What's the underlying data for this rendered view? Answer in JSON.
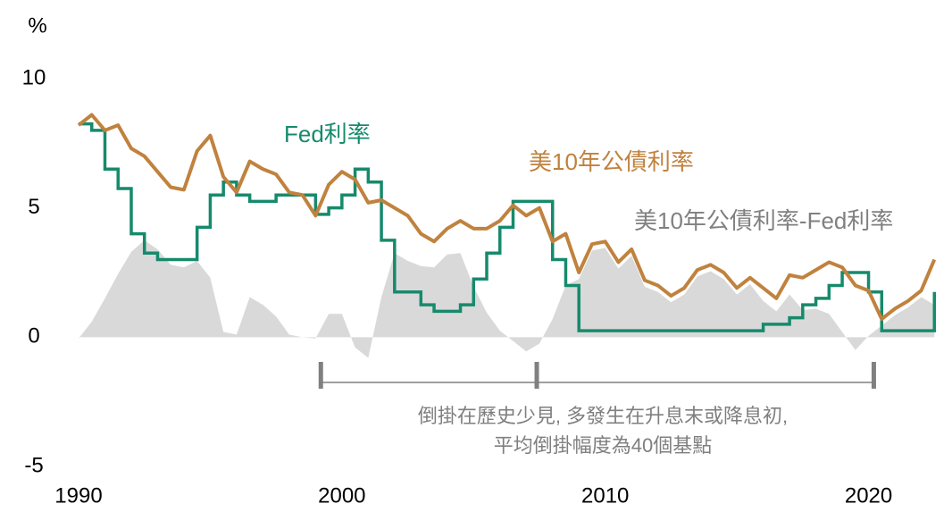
{
  "chart_data": {
    "type": "line",
    "y_axis_label": "%",
    "xlim": [
      1990,
      2023
    ],
    "xticks": [
      1990,
      2000,
      2010,
      2020
    ],
    "ylim": [
      -5,
      10
    ],
    "yticks": [
      10,
      5,
      0,
      -5
    ],
    "grid": false,
    "x": [
      1990.0,
      1990.5,
      1991.0,
      1991.5,
      1992.0,
      1992.5,
      1993.0,
      1993.5,
      1994.0,
      1994.5,
      1995.0,
      1995.5,
      1996.0,
      1996.5,
      1997.0,
      1997.5,
      1998.0,
      1998.5,
      1999.0,
      1999.5,
      2000.0,
      2000.5,
      2001.0,
      2001.5,
      2002.0,
      2002.5,
      2003.0,
      2003.5,
      2004.0,
      2004.5,
      2005.0,
      2005.5,
      2006.0,
      2006.5,
      2007.0,
      2007.5,
      2008.0,
      2008.5,
      2009.0,
      2009.5,
      2010.0,
      2010.5,
      2011.0,
      2011.5,
      2012.0,
      2012.5,
      2013.0,
      2013.5,
      2014.0,
      2014.5,
      2015.0,
      2015.5,
      2016.0,
      2016.5,
      2017.0,
      2017.5,
      2018.0,
      2018.5,
      2019.0,
      2019.5,
      2020.0,
      2020.5,
      2021.0,
      2021.5,
      2022.0,
      2022.5
    ],
    "series": [
      {
        "name": "美10年公債利率-Fed利率",
        "color": "#d9d9d9",
        "style": "area",
        "values": [
          -0.05,
          0.6,
          1.5,
          2.45,
          3.3,
          3.75,
          3.4,
          2.8,
          2.7,
          2.95,
          2.3,
          0.2,
          0.1,
          1.55,
          1.25,
          0.8,
          0.1,
          0.0,
          -0.05,
          0.9,
          0.9,
          -0.4,
          -0.8,
          1.55,
          3.25,
          2.95,
          2.75,
          2.7,
          3.2,
          3.25,
          1.95,
          0.95,
          0.25,
          -0.15,
          -0.55,
          -0.25,
          0.7,
          2.0,
          2.25,
          3.35,
          3.45,
          2.65,
          3.15,
          1.95,
          1.75,
          1.35,
          1.65,
          2.35,
          2.55,
          2.25,
          1.65,
          2.05,
          1.4,
          1.0,
          1.65,
          1.05,
          1.1,
          0.9,
          0.2,
          -0.5,
          0.05,
          0.45,
          0.85,
          1.15,
          1.55,
          1.25
        ]
      },
      {
        "name": "Fed利率",
        "color": "#168a6c",
        "style": "step",
        "values": [
          8.25,
          8.0,
          6.5,
          5.75,
          4.0,
          3.25,
          3.0,
          3.0,
          3.0,
          4.25,
          5.5,
          6.0,
          5.5,
          5.25,
          5.25,
          5.5,
          5.5,
          5.5,
          4.75,
          5.0,
          5.5,
          6.5,
          6.0,
          3.75,
          1.75,
          1.75,
          1.25,
          1.0,
          1.0,
          1.25,
          2.25,
          3.25,
          4.25,
          5.25,
          5.25,
          5.25,
          3.0,
          2.0,
          0.25,
          0.25,
          0.25,
          0.25,
          0.25,
          0.25,
          0.25,
          0.25,
          0.25,
          0.25,
          0.25,
          0.25,
          0.25,
          0.25,
          0.5,
          0.5,
          0.75,
          1.25,
          1.5,
          2.0,
          2.5,
          2.5,
          1.75,
          0.25,
          0.25,
          0.25,
          0.25,
          1.75
        ]
      },
      {
        "name": "美10年公債利率",
        "color": "#c0823e",
        "style": "line",
        "values": [
          8.2,
          8.6,
          8.0,
          8.2,
          7.3,
          7.0,
          6.4,
          5.8,
          5.7,
          7.2,
          7.8,
          6.2,
          5.6,
          6.8,
          6.5,
          6.3,
          5.6,
          5.5,
          4.7,
          5.9,
          6.4,
          6.1,
          5.2,
          5.3,
          5.0,
          4.7,
          4.0,
          3.7,
          4.2,
          4.5,
          4.2,
          4.2,
          4.5,
          5.1,
          4.7,
          5.0,
          3.7,
          4.0,
          2.5,
          3.6,
          3.7,
          2.9,
          3.4,
          2.2,
          2.0,
          1.6,
          1.9,
          2.6,
          2.8,
          2.5,
          1.9,
          2.3,
          1.9,
          1.5,
          2.4,
          2.3,
          2.6,
          2.9,
          2.7,
          2.0,
          1.8,
          0.7,
          1.1,
          1.4,
          1.8,
          3.0
        ]
      }
    ],
    "inversion_markers": [
      1999.2,
      2007.4,
      2020.2
    ],
    "annotation_lines": [
      "倒掛在歷史少見, 多發生在升息末或降息初,",
      "平均倒掛幅度為40個基點"
    ]
  }
}
